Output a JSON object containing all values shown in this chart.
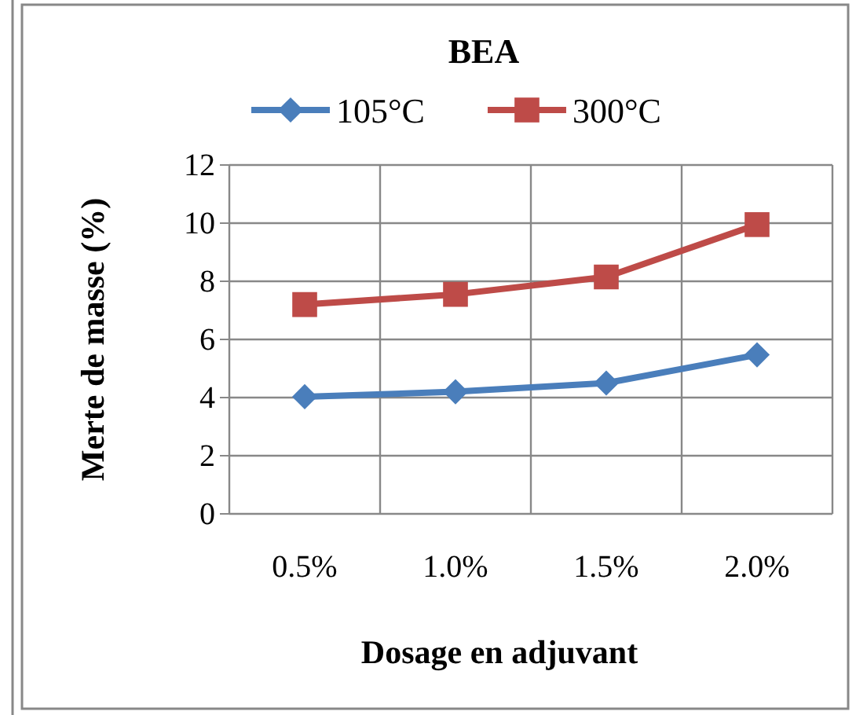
{
  "chart_data": {
    "type": "line",
    "title": "BEA",
    "xlabel": "Dosage en adjuvant",
    "ylabel": "Merte de masse (%)",
    "categories": [
      "0.5%",
      "1.0%",
      "1.5%",
      "2.0%"
    ],
    "series": [
      {
        "name": "105°C",
        "color": "#4a7ebb",
        "values": [
          4.03,
          4.2,
          4.5,
          5.47
        ],
        "marker": "diamond"
      },
      {
        "name": "300°C",
        "color": "#be4b48",
        "values": [
          7.2,
          7.55,
          8.15,
          9.95
        ],
        "marker": "square"
      }
    ],
    "ylim": [
      0,
      12
    ],
    "yticks": [
      0,
      2,
      4,
      6,
      8,
      10,
      12
    ],
    "grid": true,
    "legend": "top"
  }
}
